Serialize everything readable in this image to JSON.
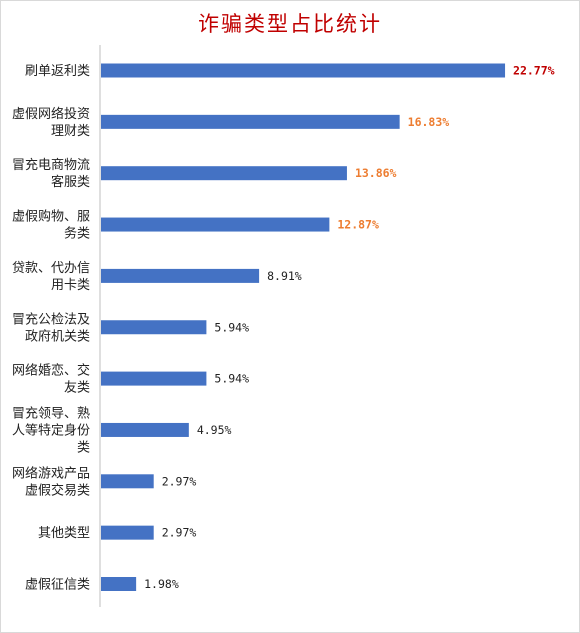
{
  "chart_data": {
    "type": "bar",
    "orientation": "horizontal",
    "title": "诈骗类型占比统计",
    "categories": [
      [
        "刷单返利类"
      ],
      [
        "虚假网络投资",
        "理财类"
      ],
      [
        "冒充电商物流",
        "客服类"
      ],
      [
        "虚假购物、服",
        "务类"
      ],
      [
        "贷款、代办信",
        "用卡类"
      ],
      [
        "冒充公检法及",
        "政府机关类"
      ],
      [
        "网络婚恋、交",
        "友类"
      ],
      [
        "冒充领导、熟",
        "人等特定身份",
        "类"
      ],
      [
        "网络游戏产品",
        "虚假交易类"
      ],
      [
        "其他类型"
      ],
      [
        "虚假征信类"
      ]
    ],
    "values": [
      22.77,
      16.83,
      13.86,
      12.87,
      8.91,
      5.94,
      5.94,
      4.95,
      2.97,
      2.97,
      1.98
    ],
    "data_labels": [
      "22.77%",
      "16.83%",
      "13.86%",
      "12.87%",
      "8.91%",
      "5.94%",
      "5.94%",
      "4.95%",
      "2.97%",
      "2.97%",
      "1.98%"
    ],
    "label_colors": [
      "#c00000",
      "#ed7d31",
      "#ed7d31",
      "#ed7d31",
      "#222222",
      "#222222",
      "#222222",
      "#222222",
      "#222222",
      "#222222",
      "#222222"
    ],
    "xlim": [
      0,
      23.5
    ],
    "bar_color": "#4472c4",
    "grid": false,
    "legend": "none"
  }
}
